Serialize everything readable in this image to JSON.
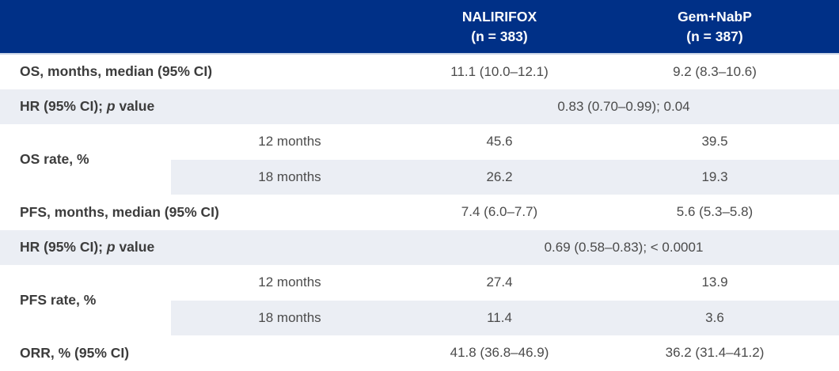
{
  "chart_data": {
    "type": "table",
    "title": "",
    "columns": [
      {
        "label": "NALIRIFOX",
        "sublabel": "(n = 383)"
      },
      {
        "label": "Gem+NabP",
        "sublabel": "(n = 387)"
      }
    ],
    "rows": [
      {
        "kind": "data",
        "label": "OS, months, median (95% CI)",
        "values": [
          "11.1 (10.0–12.1)",
          "9.2 (8.3–10.6)"
        ]
      },
      {
        "kind": "span",
        "label": "HR (95% CI); p value",
        "label_parts": {
          "pre": "HR (95% CI); ",
          "italic": "p",
          "post": " value"
        },
        "value": "0.83 (0.70–0.99); 0.04"
      },
      {
        "kind": "group",
        "label": "OS rate, %",
        "subrows": [
          {
            "sub": "12 months",
            "values": [
              "45.6",
              "39.5"
            ]
          },
          {
            "sub": "18 months",
            "values": [
              "26.2",
              "19.3"
            ]
          }
        ]
      },
      {
        "kind": "data",
        "label": "PFS, months, median (95% CI)",
        "values": [
          "7.4 (6.0–7.7)",
          "5.6 (5.3–5.8)"
        ]
      },
      {
        "kind": "span",
        "label": "HR (95% CI); p value",
        "label_parts": {
          "pre": "HR (95% CI); ",
          "italic": "p",
          "post": " value"
        },
        "value": "0.69 (0.58–0.83); < 0.0001"
      },
      {
        "kind": "group",
        "label": "PFS rate, %",
        "subrows": [
          {
            "sub": "12 months",
            "values": [
              "27.4",
              "13.9"
            ]
          },
          {
            "sub": "18 months",
            "values": [
              "11.4",
              "3.6"
            ]
          }
        ]
      },
      {
        "kind": "data",
        "label": "ORR, % (95% CI)",
        "values": [
          "41.8 (36.8–46.9)",
          "36.2 (31.4–41.2)"
        ]
      }
    ],
    "layout": {
      "legend_position": "none",
      "grid": false,
      "striped_rows": true
    },
    "colors": {
      "header_background": "#003087",
      "header_text": "#ffffff",
      "stripe_background": "#ebeef4",
      "row_label_text": "#3c3c3c",
      "value_text": "#4b4b4b",
      "header_underline": "#c9d4e6"
    }
  }
}
